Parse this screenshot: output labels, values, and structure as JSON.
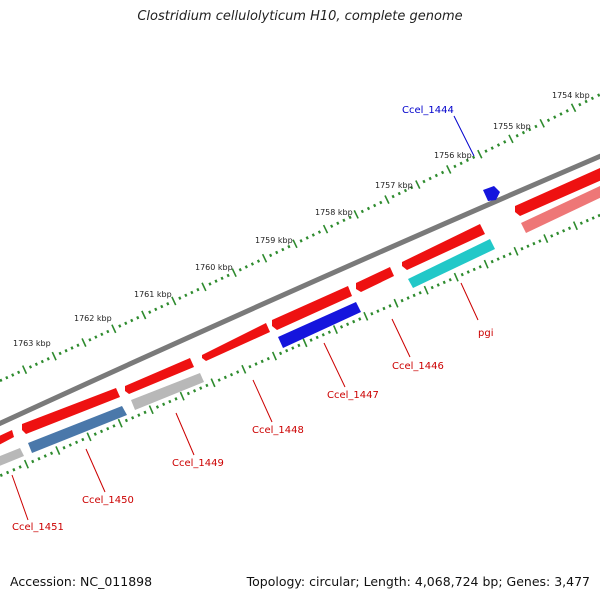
{
  "title": "Clostridium cellulolyticum H10, complete genome",
  "footer": {
    "accession": "Accession: NC_011898",
    "topology": "Topology: circular; Length: 4,068,724 bp; Genes: 3,477"
  },
  "colors": {
    "backbone": "#7a7a7a",
    "tick": "#2e8b2e",
    "gene_red": "#ee1111",
    "gene_light_red": "#ee7777",
    "gene_blue": "#1515dd",
    "gene_steel": "#4a78aa",
    "gene_grey": "#b8b8b8",
    "gene_cyan": "#22c8c8",
    "label_red": "#cc0000",
    "label_blue": "#0000cc"
  },
  "scale_labels": [
    "1754 kbp",
    "1755 kbp",
    "1756 kbp",
    "1757 kbp",
    "1758 kbp",
    "1759 kbp",
    "1760 kbp",
    "1761 kbp",
    "1762 kbp",
    "1763 kbp"
  ],
  "gene_labels": [
    "Ccel_1444",
    "pgi",
    "Ccel_1446",
    "Ccel_1447",
    "Ccel_1448",
    "Ccel_1449",
    "Ccel_1450",
    "Ccel_1451"
  ]
}
